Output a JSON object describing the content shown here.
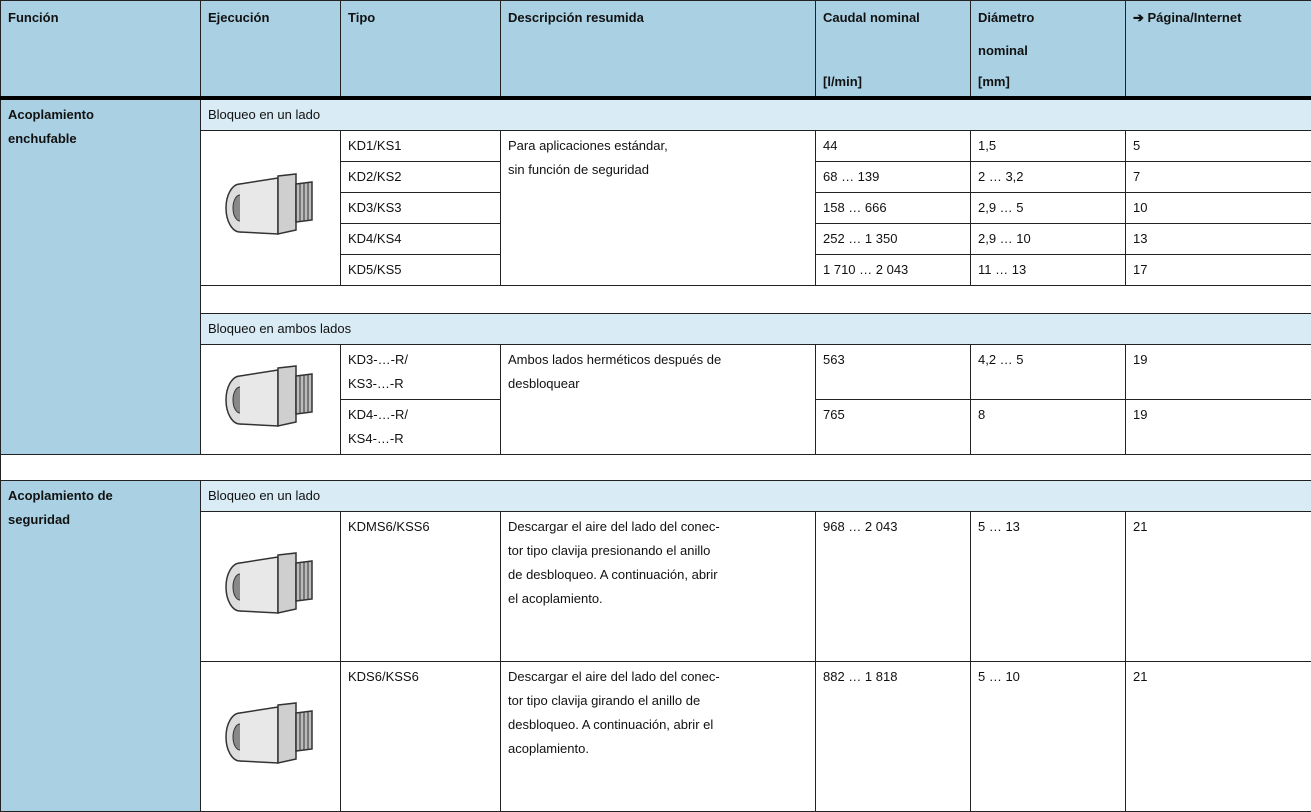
{
  "table": {
    "header": [
      {
        "label": "Función"
      },
      {
        "label": "Ejecución"
      },
      {
        "label": "Tipo"
      },
      {
        "label": "Descripción resumida"
      },
      {
        "label": "Caudal nominal",
        "unit": "[l/min]"
      },
      {
        "label": "Diámetro\nnominal",
        "unit": "[mm]"
      },
      {
        "label": "➔ Página/Internet"
      }
    ],
    "sections": [
      {
        "function": "Acoplamiento\nenchufable",
        "groups": [
          {
            "variant": "Bloqueo en un lado",
            "description": "Para aplicaciones estándar,\nsin función de seguridad",
            "rows": [
              {
                "type": "KD1/KS1",
                "flow": 44,
                "diameter": "1,5",
                "page": 5
              },
              {
                "type": "KD2/KS2",
                "flow": "68 … 139",
                "diameter": "2 … 3,2",
                "page": 7
              },
              {
                "type": "KD3/KS3",
                "flow": "158 … 666",
                "diameter": "2,9 … 5",
                "page": 10
              },
              {
                "type": "KD4/KS4",
                "flow": "252 … 1 350",
                "diameter": "2,9 … 10",
                "page": 13
              },
              {
                "type": "KD5/KS5",
                "flow": "1 710 … 2 043",
                "diameter": "11 … 13",
                "page": 17
              }
            ]
          },
          {
            "variant": "Bloqueo en ambos lados",
            "description": "Ambos lados herméticos después de\ndesbloquear",
            "rows": [
              {
                "type": "KD3-…-R/\nKS3-…-R",
                "flow": 563,
                "diameter": "4,2 … 5",
                "page": 19
              },
              {
                "type": "KD4-…-R/\nKS4-…-R",
                "flow": 765,
                "diameter": 8,
                "page": 19
              }
            ]
          }
        ]
      },
      {
        "function": "Acoplamiento de\nseguridad",
        "groups": [
          {
            "variant": "Bloqueo en un lado",
            "rows": [
              {
                "type": "KDMS6/KSS6",
                "description": "Descargar el aire del lado del conec-\ntor tipo clavija presionando el anillo\nde desbloqueo. A continuación, abrir\nel acoplamiento.",
                "flow": "968 … 2 043",
                "diameter": "5 … 13",
                "page": 21
              },
              {
                "type": "KDS6/KSS6",
                "description": "Descargar el aire del lado del conec-\ntor tipo clavija girando el anillo de\ndesbloqueo. A continuación, abrir el\nacoplamiento.",
                "flow": "882 … 1 818",
                "diameter": "5 … 10",
                "page": 21
              }
            ]
          }
        ]
      }
    ]
  }
}
